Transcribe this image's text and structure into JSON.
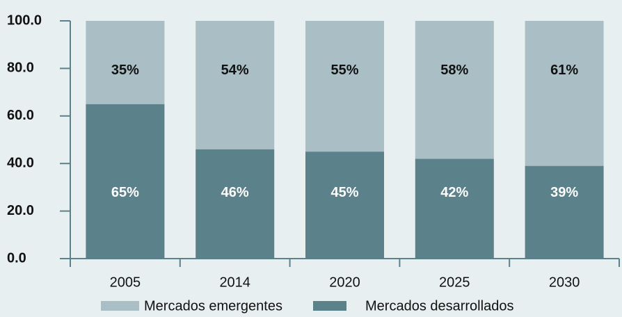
{
  "chart_data": {
    "type": "bar",
    "stacked": true,
    "categories": [
      "2005",
      "2014",
      "2020",
      "2025",
      "2030"
    ],
    "series": [
      {
        "name": "Mercados desarrollados",
        "color": "#5b818a",
        "values": [
          65,
          46,
          45,
          42,
          39
        ],
        "value_labels": [
          "65%",
          "46%",
          "45%",
          "42%",
          "39%"
        ],
        "label_color": "#ffffff"
      },
      {
        "name": "Mercados emergentes",
        "color": "#a9bfc5",
        "values": [
          35,
          54,
          55,
          58,
          61
        ],
        "value_labels": [
          "35%",
          "54%",
          "55%",
          "58%",
          "61%"
        ],
        "label_color": "#111111"
      }
    ],
    "ylim": [
      0,
      100
    ],
    "yticks": [
      {
        "value": 0,
        "label": "0.0"
      },
      {
        "value": 20,
        "label": "20.0"
      },
      {
        "value": 40,
        "label": "40.0"
      },
      {
        "value": 60,
        "label": "60.0"
      },
      {
        "value": 80,
        "label": "80.0"
      },
      {
        "value": 100,
        "label": "100.0"
      }
    ],
    "axis_color": "#5b818a"
  }
}
